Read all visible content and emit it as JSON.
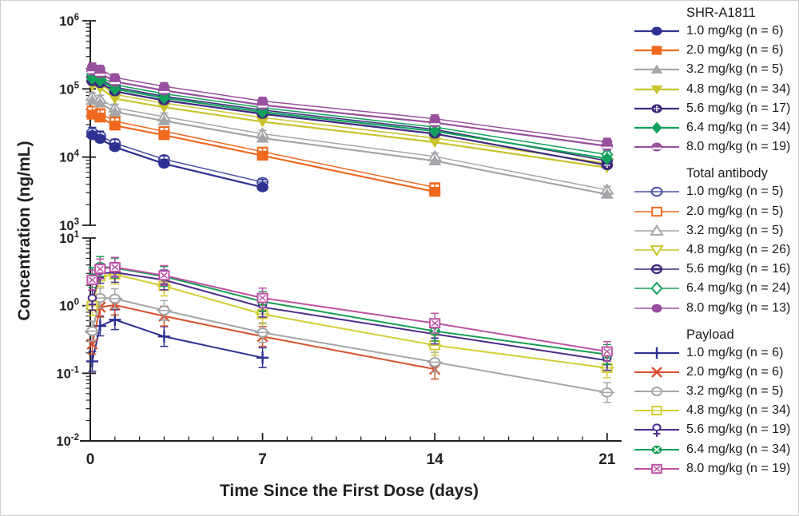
{
  "figure": {
    "background_color": "#ffffff",
    "border_color": "#cfcfcf",
    "ink_color": "#231f20"
  },
  "chart_data": {
    "type": "line",
    "title": "",
    "xlabel": "Time Since the First Dose (days)",
    "ylabel": "Concentration (ng/mL)",
    "x_range": [
      0,
      21.7
    ],
    "x_ticks": [
      0,
      7,
      14,
      21
    ],
    "x_minor_tick_step": 1,
    "grid": false,
    "legend_position": "right",
    "panels": [
      {
        "name": "upper",
        "yscale": "log",
        "ylim": [
          1000,
          1000000
        ],
        "y_tick_exponents": [
          3,
          4,
          5,
          6
        ],
        "series": [
          {
            "group": "Total antibody",
            "label": "1.0 mg/kg (n = 5)",
            "dose": "1.0 mg/kg",
            "n": 5,
            "color": "#4a4fa2",
            "marker": "circle-hline-open",
            "line_width": 1.5,
            "marker_size": 6.4,
            "error_factor": 1,
            "x": [
              0.08,
              0.4,
              1,
              3,
              7
            ],
            "y": [
              23000,
              20500,
              16000,
              9300,
              4300
            ]
          },
          {
            "group": "Total antibody",
            "label": "2.0 mg/kg (n = 5)",
            "dose": "2.0 mg/kg",
            "n": 5,
            "color": "#f0691f",
            "marker": "square-open",
            "line_width": 1.5,
            "marker_size": 6.4,
            "error_factor": 1,
            "x": [
              0.08,
              0.4,
              1,
              3,
              7,
              14
            ],
            "y": [
              48000,
              44000,
              33500,
              24000,
              12000,
              3600
            ]
          },
          {
            "group": "Total antibody",
            "label": "3.2 mg/kg (n = 5)",
            "dose": "3.2 mg/kg",
            "n": 5,
            "color": "#a4a6a9",
            "marker": "triangle-up-open",
            "line_width": 1.5,
            "marker_size": 6.4,
            "error_factor": 1,
            "x": [
              0.08,
              0.4,
              1,
              3,
              7,
              14,
              21
            ],
            "y": [
              78000,
              71000,
              53000,
              39000,
              22000,
              10200,
              3300
            ]
          },
          {
            "group": "Total antibody",
            "label": "4.8 mg/kg (n = 26)",
            "dose": "4.8 mg/kg",
            "n": 26,
            "color": "#c9c42d",
            "marker": "triangle-down-open",
            "line_width": 1.5,
            "marker_size": 6.4,
            "error_factor": 1,
            "x": [
              0.08,
              0.4,
              1,
              3,
              7,
              14,
              21
            ],
            "y": [
              128000,
              118000,
              83000,
              62000,
              38000,
              19000,
              8100
            ]
          },
          {
            "group": "Total antibody",
            "label": "5.6 mg/kg (n = 16)",
            "dose": "5.6 mg/kg",
            "n": 16,
            "color": "#3f2a7e",
            "marker": "circle-hbar-open",
            "line_width": 1.5,
            "marker_size": 6.4,
            "error_factor": 1,
            "x": [
              0.08,
              0.4,
              1,
              3,
              7,
              14,
              21
            ],
            "y": [
              149000,
              140000,
              106000,
              78000,
              49000,
              25500,
              8800
            ]
          },
          {
            "group": "Total antibody",
            "label": "6.4 mg/kg (n = 24)",
            "dose": "6.4 mg/kg",
            "n": 24,
            "color": "#12a05c",
            "marker": "diamond-open",
            "line_width": 1.5,
            "marker_size": 6.4,
            "error_factor": 1,
            "x": [
              0.08,
              0.4,
              1,
              3,
              7,
              14,
              21
            ],
            "y": [
              163000,
              153000,
              115000,
              85000,
              53000,
              27500,
              10900
            ]
          },
          {
            "group": "Total antibody",
            "label": "8.0 mg/kg (n = 13)",
            "dose": "8.0 mg/kg",
            "n": 13,
            "color": "#98509e",
            "marker": "circle-filled-plain",
            "line_width": 1.5,
            "marker_size": 6.4,
            "error_factor": 1,
            "x": [
              0.08,
              0.4,
              1,
              3,
              7,
              14,
              21
            ],
            "y": [
              212000,
              196000,
              147000,
              109000,
              66500,
              36500,
              16600
            ]
          },
          {
            "group": "SHR-A1811",
            "label": "1.0 mg/kg (n = 6)",
            "dose": "1.0 mg/kg",
            "n": 6,
            "color": "#2e3192",
            "marker": "circle-filled",
            "line_width": 2.2,
            "marker_size": 7,
            "error_factor": 1.3,
            "x": [
              0.08,
              0.4,
              1,
              3,
              7
            ],
            "y": [
              21000,
              18500,
              14000,
              8000,
              3600
            ]
          },
          {
            "group": "SHR-A1811",
            "label": "2.0 mg/kg (n = 6)",
            "dose": "2.0 mg/kg",
            "n": 6,
            "color": "#f0691f",
            "marker": "square-filled",
            "line_width": 2.2,
            "marker_size": 7,
            "error_factor": 1.3,
            "x": [
              0.08,
              0.4,
              1,
              3,
              7,
              14
            ],
            "y": [
              42000,
              38000,
              29000,
              21000,
              10500,
              3100
            ]
          },
          {
            "group": "SHR-A1811",
            "label": "3.2 mg/kg (n = 5)",
            "dose": "3.2 mg/kg",
            "n": 5,
            "color": "#a4a6a9",
            "marker": "triangle-up-filled",
            "line_width": 2.2,
            "marker_size": 7,
            "error_factor": 1.3,
            "x": [
              0.08,
              0.4,
              1,
              3,
              7,
              14,
              21
            ],
            "y": [
              68000,
              62000,
              46000,
              34000,
              19000,
              8800,
              2850
            ]
          },
          {
            "group": "SHR-A1811",
            "label": "4.8 mg/kg (n = 34)",
            "dose": "4.8 mg/kg",
            "n": 34,
            "color": "#c9c42d",
            "marker": "triangle-down-filled",
            "line_width": 2.2,
            "marker_size": 7,
            "error_factor": 1.3,
            "x": [
              0.08,
              0.4,
              1,
              3,
              7,
              14,
              21
            ],
            "y": [
              112000,
              103000,
              72000,
              54000,
              33000,
              16500,
              7000
            ]
          },
          {
            "group": "SHR-A1811",
            "label": "5.6 mg/kg (n = 17)",
            "dose": "5.6 mg/kg",
            "n": 17,
            "color": "#3f2a7e",
            "marker": "circle-dotted",
            "line_width": 2.2,
            "marker_size": 7,
            "error_factor": 1.3,
            "x": [
              0.08,
              0.4,
              1,
              3,
              7,
              14,
              21
            ],
            "y": [
              130000,
              122000,
              92000,
              68000,
              43000,
              22000,
              7600
            ]
          },
          {
            "group": "SHR-A1811",
            "label": "6.4 mg/kg (n = 34)",
            "dose": "6.4 mg/kg",
            "n": 34,
            "color": "#12a05c",
            "marker": "diamond-filled",
            "line_width": 2.2,
            "marker_size": 7,
            "error_factor": 1.3,
            "x": [
              0.08,
              0.4,
              1,
              3,
              7,
              14,
              21
            ],
            "y": [
              142000,
              133000,
              100000,
              74000,
              46000,
              24000,
              9500
            ]
          },
          {
            "group": "SHR-A1811",
            "label": "8.0 mg/kg (n = 19)",
            "dose": "8.0 mg/kg",
            "n": 19,
            "color": "#98509e",
            "marker": "circle-halfstripe",
            "line_width": 2.2,
            "marker_size": 7,
            "error_factor": 1.3,
            "x": [
              0.08,
              0.4,
              1,
              3,
              7,
              14,
              21
            ],
            "y": [
              185000,
              170000,
              128000,
              95000,
              58000,
              32000,
              14500
            ]
          }
        ]
      },
      {
        "name": "lower",
        "yscale": "log",
        "ylim": [
          0.01,
          10
        ],
        "y_tick_exponents": [
          -2,
          -1,
          0,
          1
        ],
        "series": [
          {
            "group": "Payload",
            "label": "1.0 mg/kg (n = 6)",
            "dose": "1.0 mg/kg",
            "n": 6,
            "color": "#2e3192",
            "marker": "plus",
            "line_width": 2,
            "marker_size": 6.6,
            "error_factor": 1.4,
            "x": [
              0.08,
              0.4,
              1,
              3,
              7
            ],
            "y": [
              0.15,
              0.5,
              0.62,
              0.35,
              0.17
            ]
          },
          {
            "group": "Payload",
            "label": "2.0 mg/kg (n = 6)",
            "dose": "2.0 mg/kg",
            "n": 6,
            "color": "#d6502e",
            "marker": "x-mark",
            "line_width": 2,
            "marker_size": 6.6,
            "error_factor": 1.4,
            "x": [
              0.08,
              0.4,
              1,
              3,
              7,
              14
            ],
            "y": [
              0.27,
              0.95,
              1.02,
              0.7,
              0.35,
              0.115
            ]
          },
          {
            "group": "Payload",
            "label": "3.2 mg/kg (n = 5)",
            "dose": "3.2 mg/kg",
            "n": 5,
            "color": "#a4a6a9",
            "marker": "circle-dash-open",
            "line_width": 2,
            "marker_size": 6.6,
            "error_factor": 1.4,
            "x": [
              0.08,
              0.4,
              1,
              3,
              7,
              14,
              21
            ],
            "y": [
              0.42,
              1.3,
              1.27,
              0.85,
              0.4,
              0.146,
              0.052
            ]
          },
          {
            "group": "Payload",
            "label": "4.8 mg/kg (n = 34)",
            "dose": "4.8 mg/kg",
            "n": 34,
            "color": "#d3cd33",
            "marker": "square-dash-open",
            "line_width": 2,
            "marker_size": 6.6,
            "error_factor": 1.4,
            "x": [
              0.08,
              0.4,
              1,
              3,
              7,
              14,
              21
            ],
            "y": [
              1.0,
              2.7,
              2.9,
              1.95,
              0.75,
              0.26,
              0.12
            ]
          },
          {
            "group": "Payload",
            "label": "5.6 mg/kg (n = 19)",
            "dose": "5.6 mg/kg",
            "n": 19,
            "color": "#4b2d8b",
            "marker": "circle-plus-below",
            "line_width": 2,
            "marker_size": 6.6,
            "error_factor": 1.4,
            "x": [
              0.08,
              0.4,
              1,
              3,
              7,
              14,
              21
            ],
            "y": [
              1.2,
              3.0,
              3.1,
              2.4,
              0.95,
              0.38,
              0.155
            ]
          },
          {
            "group": "Payload",
            "label": "6.4 mg/kg (n = 34)",
            "dose": "6.4 mg/kg",
            "n": 34,
            "color": "#169e54",
            "marker": "circle-x-filled",
            "line_width": 2,
            "marker_size": 6.6,
            "error_factor": 1.4,
            "x": [
              0.08,
              0.4,
              1,
              3,
              7,
              14,
              21
            ],
            "y": [
              2.6,
              3.8,
              3.6,
              2.7,
              1.15,
              0.42,
              0.19
            ]
          },
          {
            "group": "Payload",
            "label": "8.0 mg/kg (n = 19)",
            "dose": "8.0 mg/kg",
            "n": 19,
            "color": "#bc53a4",
            "marker": "square-x-open",
            "line_width": 2,
            "marker_size": 6.6,
            "error_factor": 1.4,
            "x": [
              0.08,
              0.4,
              1,
              3,
              7,
              14,
              21
            ],
            "y": [
              2.4,
              3.5,
              3.7,
              2.8,
              1.3,
              0.55,
              0.21
            ]
          }
        ]
      }
    ],
    "legend_groups": [
      {
        "title": "SHR-A1811",
        "panel": 0,
        "series_indexes": [
          7,
          8,
          9,
          10,
          11,
          12,
          13
        ]
      },
      {
        "title": "Total antibody",
        "panel": 0,
        "series_indexes": [
          0,
          1,
          2,
          3,
          4,
          5,
          6
        ]
      },
      {
        "title": "Payload",
        "panel": 1,
        "series_indexes": [
          0,
          1,
          2,
          3,
          4,
          5,
          6
        ]
      }
    ]
  }
}
